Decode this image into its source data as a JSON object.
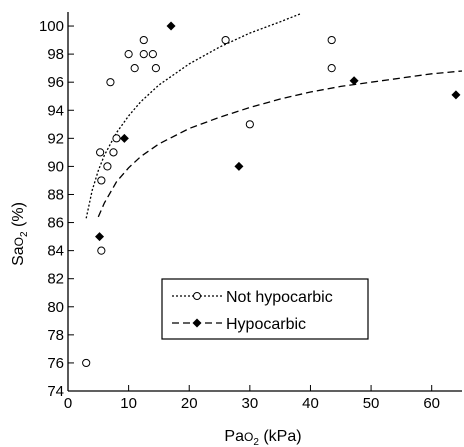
{
  "chart_data": {
    "type": "scatter",
    "xlabel": "PaO2 (kPa)",
    "xlabel_main": "Pa",
    "xlabel_sub_O": "O",
    "xlabel_sub_2": "2",
    "xlabel_unit": " (kPa)",
    "ylabel": "SaO2 (%)",
    "ylabel_main": "Sa",
    "ylabel_sub_O": "O",
    "ylabel_sub_2": "2",
    "ylabel_unit": " (%)",
    "xlim": [
      0,
      65
    ],
    "ylim": [
      74,
      101
    ],
    "x_ticks": [
      0,
      10,
      20,
      30,
      40,
      50,
      60
    ],
    "x_tick_labels": [
      "0",
      "10",
      "20",
      "30",
      "40",
      "50",
      "60"
    ],
    "y_ticks": [
      74,
      76,
      78,
      80,
      82,
      84,
      86,
      88,
      90,
      92,
      94,
      96,
      98,
      100
    ],
    "y_tick_labels": [
      "74",
      "76",
      "78",
      "80",
      "82",
      "84",
      "86",
      "88",
      "90",
      "92",
      "94",
      "96",
      "98",
      "100"
    ],
    "grid": false,
    "legend_position": "lower-center",
    "series": [
      {
        "name": "Not hypocarbic",
        "marker": "open-circle",
        "line_style": "dotted",
        "color": "#000000",
        "points": [
          [
            3,
            76
          ],
          [
            5.3,
            91
          ],
          [
            5.5,
            89
          ],
          [
            5.5,
            84
          ],
          [
            6.5,
            90
          ],
          [
            7,
            96
          ],
          [
            7.5,
            91
          ],
          [
            8,
            92
          ],
          [
            10,
            98
          ],
          [
            11,
            97
          ],
          [
            12.5,
            99
          ],
          [
            12.5,
            98
          ],
          [
            14,
            98
          ],
          [
            14.5,
            97
          ],
          [
            26,
            99
          ],
          [
            30,
            93
          ],
          [
            43.5,
            99
          ],
          [
            43.5,
            97
          ]
        ],
        "fit_curve": [
          [
            3,
            86.3
          ],
          [
            4,
            88.3
          ],
          [
            5,
            89.7
          ],
          [
            6,
            90.8
          ],
          [
            8,
            92.4
          ],
          [
            10,
            93.6
          ],
          [
            12,
            94.6
          ],
          [
            15,
            95.8
          ],
          [
            20,
            97.3
          ],
          [
            25,
            98.5
          ],
          [
            30,
            99.5
          ],
          [
            35,
            100.3
          ],
          [
            38.5,
            100.9
          ]
        ]
      },
      {
        "name": "Hypocarbic",
        "marker": "filled-diamond",
        "line_style": "dashed",
        "color": "#000000",
        "points": [
          [
            5.2,
            85
          ],
          [
            9.3,
            92
          ],
          [
            17,
            100
          ],
          [
            28.2,
            90
          ],
          [
            47.2,
            96.1
          ],
          [
            64,
            95.1
          ]
        ],
        "fit_curve": [
          [
            5,
            86.4
          ],
          [
            6,
            87.4
          ],
          [
            8,
            88.9
          ],
          [
            10,
            89.9
          ],
          [
            12,
            90.7
          ],
          [
            15,
            91.6
          ],
          [
            20,
            92.7
          ],
          [
            25,
            93.5
          ],
          [
            30,
            94.2
          ],
          [
            35,
            94.8
          ],
          [
            40,
            95.3
          ],
          [
            45,
            95.7
          ],
          [
            50,
            96.0
          ],
          [
            55,
            96.3
          ],
          [
            60,
            96.6
          ],
          [
            65,
            96.8
          ]
        ]
      }
    ]
  }
}
